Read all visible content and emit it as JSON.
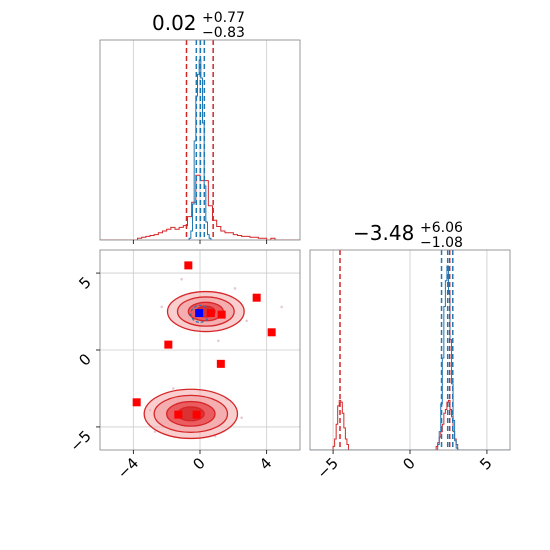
{
  "colors": {
    "red": "#d62728",
    "blue": "#1f77b4",
    "marker": "#ff0000",
    "marker_blue": "#0000ff",
    "contour_fill_light": "#f4a6a8",
    "contour_fill_dark": "#e8474c"
  },
  "chart_data": [
    {
      "type": "histogram",
      "panel": "top-left marginal",
      "title": {
        "median": "0.02",
        "upper": "+0.77",
        "lower": "−0.83"
      },
      "xlim": [
        -6,
        6
      ],
      "grid": true,
      "series": [
        {
          "color": "red",
          "bin_edges_start": -6,
          "bin_width": 0.25,
          "heights": [
            0,
            0,
            0,
            0,
            0,
            0,
            0,
            0,
            0,
            0.01,
            0.015,
            0.02,
            0.025,
            0.03,
            0.04,
            0.05,
            0.06,
            0.07,
            0.06,
            0.07,
            0.08,
            0.13,
            0.21,
            0.36,
            0.33,
            0.33,
            0.19,
            0.11,
            0.075,
            0.05,
            0.04,
            0.04,
            0.03,
            0.025,
            0.02,
            0.02,
            0.015,
            0.015,
            0.01,
            0.01,
            0,
            0.01,
            0,
            0,
            0,
            0,
            0,
            0
          ],
          "quantile_lines": [
            -0.81,
            0.02,
            0.79
          ]
        },
        {
          "color": "blue",
          "bin_edges_start": -0.75,
          "bin_width": 0.1,
          "heights": [
            0,
            0.01,
            0.05,
            0.2,
            0.55,
            0.8,
            0.92,
            1.0,
            0.9,
            0.65,
            0.3,
            0.1,
            0.03,
            0.01,
            0
          ],
          "quantile_lines": [
            -0.22,
            0.02,
            0.26
          ]
        }
      ]
    },
    {
      "type": "histogram",
      "panel": "bottom-right marginal",
      "title": {
        "median": "−3.48",
        "upper": "+6.06",
        "lower": "−1.08"
      },
      "xlim": [
        -6.5,
        6.5
      ],
      "xticks": [
        "−5",
        "0",
        "5"
      ],
      "xtick_values": [
        -5,
        0,
        5
      ],
      "grid": true,
      "series": [
        {
          "color": "red",
          "bins": [
            {
              "x": -4.95,
              "h": 0.02
            },
            {
              "x": -4.85,
              "h": 0.06
            },
            {
              "x": -4.75,
              "h": 0.14
            },
            {
              "x": -4.65,
              "h": 0.24
            },
            {
              "x": -4.55,
              "h": 0.27
            },
            {
              "x": -4.45,
              "h": 0.26
            },
            {
              "x": -4.35,
              "h": 0.2
            },
            {
              "x": -4.25,
              "h": 0.12
            },
            {
              "x": -4.15,
              "h": 0.06
            },
            {
              "x": -4.05,
              "h": 0.03
            },
            {
              "x": 1.75,
              "h": 0.02
            },
            {
              "x": 1.85,
              "h": 0.04
            },
            {
              "x": 1.95,
              "h": 0.07
            },
            {
              "x": 2.05,
              "h": 0.1
            },
            {
              "x": 2.15,
              "h": 0.14
            },
            {
              "x": 2.25,
              "h": 0.2
            },
            {
              "x": 2.35,
              "h": 0.22
            },
            {
              "x": 2.45,
              "h": 0.26
            },
            {
              "x": 2.55,
              "h": 0.27
            },
            {
              "x": 2.65,
              "h": 0.22
            },
            {
              "x": 2.75,
              "h": 0.18
            },
            {
              "x": 2.85,
              "h": 0.1
            },
            {
              "x": 2.95,
              "h": 0.06
            },
            {
              "x": 3.05,
              "h": 0.03
            }
          ],
          "quantile_lines": [
            -4.55,
            2.58
          ]
        },
        {
          "color": "blue",
          "bins": [
            {
              "x": 1.85,
              "h": 0.03
            },
            {
              "x": 1.95,
              "h": 0.1
            },
            {
              "x": 2.05,
              "h": 0.25
            },
            {
              "x": 2.15,
              "h": 0.5
            },
            {
              "x": 2.25,
              "h": 0.78
            },
            {
              "x": 2.35,
              "h": 0.92
            },
            {
              "x": 2.45,
              "h": 1.0
            },
            {
              "x": 2.55,
              "h": 0.85
            },
            {
              "x": 2.65,
              "h": 0.6
            },
            {
              "x": 2.75,
              "h": 0.36
            },
            {
              "x": 2.85,
              "h": 0.16
            },
            {
              "x": 2.95,
              "h": 0.05
            },
            {
              "x": 3.05,
              "h": 0.01
            }
          ],
          "quantile_lines": [
            2.05,
            2.45,
            2.78
          ]
        }
      ]
    },
    {
      "type": "scatter",
      "panel": "bottom-left joint",
      "xlim": [
        -6,
        6
      ],
      "ylim": [
        -6.5,
        6.5
      ],
      "xticks": [
        "−4",
        "0",
        "4"
      ],
      "xtick_values": [
        -4,
        0,
        4
      ],
      "yticks": [
        "−5",
        "0",
        "5"
      ],
      "ytick_values": [
        -5,
        0,
        5
      ],
      "grid": true,
      "contours": [
        {
          "cx": 0.35,
          "cy": 2.5,
          "levels": [
            [
              2.3,
              1.3
            ],
            [
              1.7,
              0.95
            ],
            [
              1.05,
              0.6
            ],
            [
              0.55,
              0.35
            ]
          ]
        },
        {
          "cx": -0.55,
          "cy": -4.15,
          "levels": [
            [
              2.8,
              1.6
            ],
            [
              2.2,
              1.2
            ],
            [
              1.45,
              0.8
            ],
            [
              0.8,
              0.45
            ]
          ]
        }
      ],
      "blue_contour": {
        "cx": 0.0,
        "cy": 2.35,
        "rx": 0.55,
        "ry": 0.55
      },
      "markers": [
        {
          "x": -0.7,
          "y": 5.5
        },
        {
          "x": 3.4,
          "y": 3.4
        },
        {
          "x": 4.3,
          "y": 1.15
        },
        {
          "x": -1.9,
          "y": 0.35
        },
        {
          "x": 1.3,
          "y": 2.3
        },
        {
          "x": 0.65,
          "y": 2.4
        },
        {
          "x": 1.25,
          "y": -0.9
        },
        {
          "x": -3.8,
          "y": -3.4
        },
        {
          "x": -1.3,
          "y": -4.2
        },
        {
          "x": -0.2,
          "y": -4.2
        }
      ],
      "marker_blue": {
        "x": -0.05,
        "y": 2.4
      },
      "scatter_points": [
        {
          "x": 2.1,
          "y": 4.0
        },
        {
          "x": -2.3,
          "y": 2.8
        },
        {
          "x": 2.8,
          "y": 1.9
        },
        {
          "x": -1.6,
          "y": -2.5
        },
        {
          "x": 1.6,
          "y": -3.2
        },
        {
          "x": -3.0,
          "y": -3.9
        },
        {
          "x": 2.5,
          "y": -4.4
        },
        {
          "x": -2.7,
          "y": -5.3
        },
        {
          "x": 0.9,
          "y": -5.6
        },
        {
          "x": 4.9,
          "y": 2.8
        },
        {
          "x": -1.1,
          "y": 4.6
        },
        {
          "x": 1.1,
          "y": 0.6
        }
      ]
    }
  ]
}
